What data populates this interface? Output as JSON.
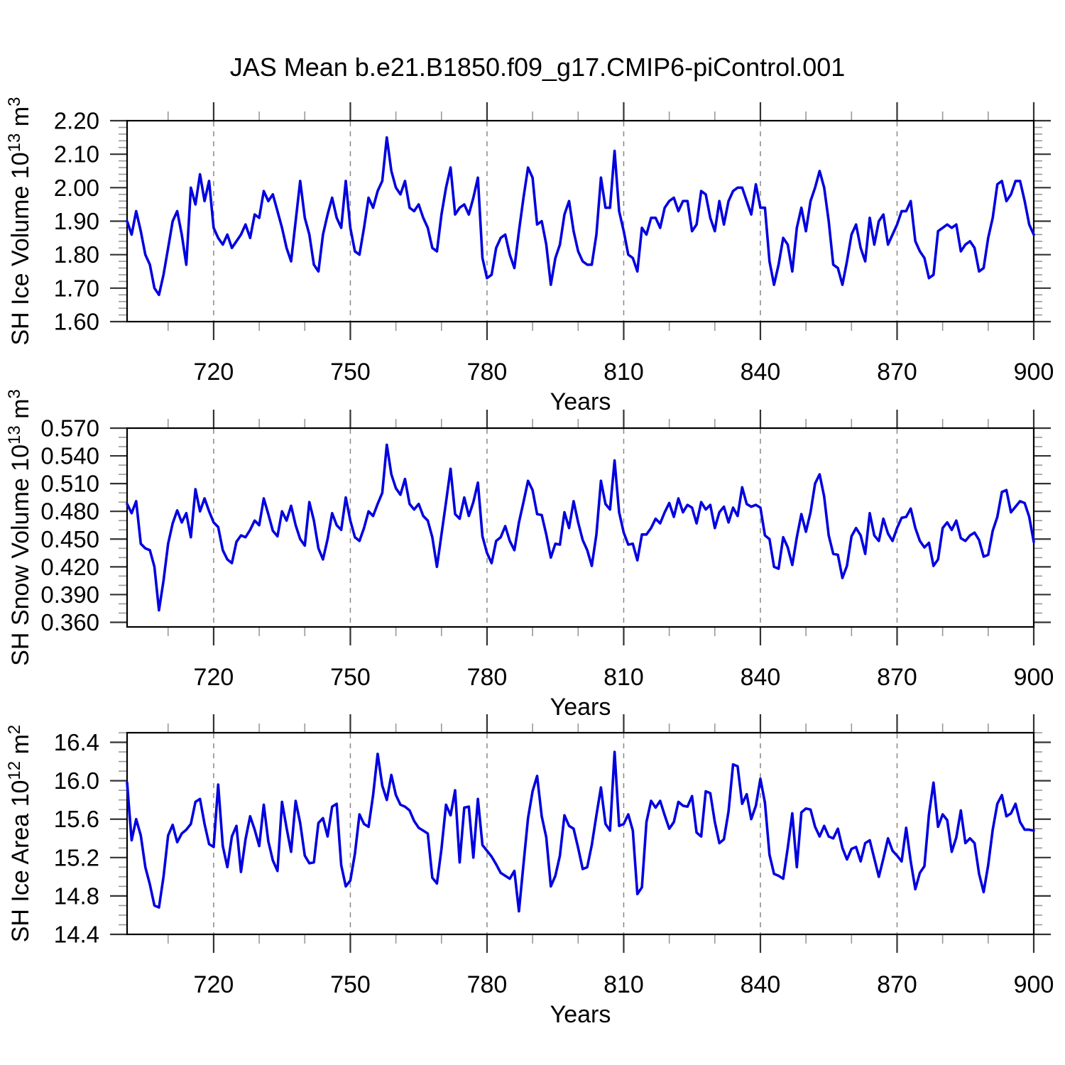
{
  "title": "JAS Mean b.e21.B1850.f09_g17.CMIP6-piControl.001",
  "colors": {
    "line": "#0000e0",
    "frame": "#000000",
    "grid": "#888888",
    "major_tick": "#333333",
    "minor_tick": "#999999",
    "text": "#000000"
  },
  "x_axis": {
    "label": "Years",
    "xlim": [
      701,
      900
    ],
    "major_ticks": [
      720,
      750,
      780,
      810,
      840,
      870,
      900
    ],
    "minor_step": 10
  },
  "chart_data": [
    {
      "id": "sh-ice-volume",
      "type": "line",
      "series_name": "SH Ice Volume 10^13 m^3",
      "xlabel": "Years",
      "ylabel_parts": [
        {
          "t": "SH Ice Volume 10"
        },
        {
          "s": "13"
        },
        {
          "t": " m"
        },
        {
          "s": "3"
        }
      ],
      "ylim": [
        1.6,
        2.2
      ],
      "y_major": [
        {
          "v": 2.2,
          "label": "2.20"
        },
        {
          "v": 2.1,
          "label": "2.10"
        },
        {
          "v": 2.0,
          "label": "2.00"
        },
        {
          "v": 1.9,
          "label": "1.90"
        },
        {
          "v": 1.8,
          "label": "1.80"
        },
        {
          "v": 1.7,
          "label": "1.70"
        },
        {
          "v": 1.6,
          "label": "1.60"
        }
      ],
      "y_minor_step": 0.02,
      "x_start": 701,
      "x_step": 1,
      "values": [
        1.9,
        1.86,
        1.93,
        1.87,
        1.8,
        1.77,
        1.7,
        1.68,
        1.74,
        1.82,
        1.9,
        1.93,
        1.86,
        1.77,
        2.0,
        1.95,
        2.04,
        1.96,
        2.02,
        1.88,
        1.85,
        1.83,
        1.86,
        1.82,
        1.84,
        1.86,
        1.89,
        1.85,
        1.92,
        1.91,
        1.99,
        1.96,
        1.98,
        1.93,
        1.88,
        1.82,
        1.78,
        1.9,
        2.02,
        1.91,
        1.86,
        1.77,
        1.75,
        1.86,
        1.92,
        1.97,
        1.91,
        1.88,
        2.02,
        1.88,
        1.81,
        1.8,
        1.88,
        1.97,
        1.94,
        1.99,
        2.02,
        2.15,
        2.05,
        2.0,
        1.98,
        2.02,
        1.94,
        1.93,
        1.95,
        1.91,
        1.88,
        1.82,
        1.81,
        1.92,
        2.0,
        2.06,
        1.92,
        1.94,
        1.95,
        1.92,
        1.97,
        2.03,
        1.79,
        1.73,
        1.74,
        1.82,
        1.85,
        1.86,
        1.8,
        1.76,
        1.87,
        1.97,
        2.06,
        2.03,
        1.89,
        1.9,
        1.83,
        1.71,
        1.79,
        1.83,
        1.92,
        1.96,
        1.87,
        1.81,
        1.78,
        1.77,
        1.77,
        1.86,
        2.03,
        1.94,
        1.94,
        2.11,
        1.93,
        1.87,
        1.8,
        1.79,
        1.75,
        1.88,
        1.86,
        1.91,
        1.91,
        1.88,
        1.94,
        1.96,
        1.97,
        1.93,
        1.96,
        1.96,
        1.87,
        1.89,
        1.99,
        1.98,
        1.91,
        1.87,
        1.96,
        1.89,
        1.96,
        1.99,
        2.0,
        2.0,
        1.96,
        1.92,
        2.01,
        1.94,
        1.94,
        1.78,
        1.71,
        1.77,
        1.85,
        1.83,
        1.75,
        1.88,
        1.94,
        1.87,
        1.96,
        2.0,
        2.05,
        2.0,
        1.9,
        1.77,
        1.76,
        1.71,
        1.78,
        1.86,
        1.89,
        1.82,
        1.78,
        1.91,
        1.83,
        1.9,
        1.92,
        1.83,
        1.86,
        1.89,
        1.93,
        1.93,
        1.96,
        1.84,
        1.81,
        1.79,
        1.73,
        1.74,
        1.87,
        1.88,
        1.89,
        1.88,
        1.89,
        1.81,
        1.83,
        1.84,
        1.82,
        1.75,
        1.76,
        1.85,
        1.91,
        2.01,
        2.02,
        1.96,
        1.98,
        2.02,
        2.02,
        1.96,
        1.89,
        1.86
      ]
    },
    {
      "id": "sh-snow-volume",
      "type": "line",
      "series_name": "SH Snow Volume 10^13 m^3",
      "xlabel": "Years",
      "ylabel_parts": [
        {
          "t": "SH Snow Volume 10"
        },
        {
          "s": "13"
        },
        {
          "t": " m"
        },
        {
          "s": "3"
        }
      ],
      "ylim": [
        0.355,
        0.57
      ],
      "y_major": [
        {
          "v": 0.57,
          "label": "0.570"
        },
        {
          "v": 0.54,
          "label": "0.540"
        },
        {
          "v": 0.51,
          "label": "0.510"
        },
        {
          "v": 0.48,
          "label": "0.480"
        },
        {
          "v": 0.45,
          "label": "0.450"
        },
        {
          "v": 0.42,
          "label": "0.420"
        },
        {
          "v": 0.39,
          "label": "0.390"
        },
        {
          "v": 0.36,
          "label": "0.360"
        }
      ],
      "y_minor_step": 0.01,
      "x_start": 701,
      "x_step": 1,
      "values": [
        0.488,
        0.478,
        0.491,
        0.445,
        0.44,
        0.438,
        0.42,
        0.373,
        0.405,
        0.445,
        0.467,
        0.481,
        0.468,
        0.478,
        0.452,
        0.504,
        0.48,
        0.494,
        0.48,
        0.468,
        0.463,
        0.438,
        0.428,
        0.424,
        0.447,
        0.454,
        0.452,
        0.46,
        0.47,
        0.465,
        0.494,
        0.477,
        0.459,
        0.453,
        0.48,
        0.47,
        0.486,
        0.465,
        0.45,
        0.443,
        0.49,
        0.47,
        0.44,
        0.428,
        0.45,
        0.478,
        0.465,
        0.46,
        0.495,
        0.47,
        0.452,
        0.448,
        0.462,
        0.48,
        0.475,
        0.488,
        0.5,
        0.552,
        0.52,
        0.505,
        0.498,
        0.515,
        0.488,
        0.482,
        0.488,
        0.475,
        0.47,
        0.452,
        0.42,
        0.455,
        0.49,
        0.526,
        0.477,
        0.472,
        0.495,
        0.475,
        0.49,
        0.511,
        0.453,
        0.435,
        0.424,
        0.448,
        0.452,
        0.464,
        0.448,
        0.438,
        0.468,
        0.49,
        0.513,
        0.503,
        0.477,
        0.476,
        0.455,
        0.43,
        0.445,
        0.444,
        0.479,
        0.462,
        0.491,
        0.468,
        0.449,
        0.438,
        0.421,
        0.455,
        0.513,
        0.488,
        0.482,
        0.535,
        0.479,
        0.457,
        0.444,
        0.445,
        0.427,
        0.455,
        0.455,
        0.462,
        0.472,
        0.467,
        0.479,
        0.489,
        0.474,
        0.494,
        0.479,
        0.487,
        0.484,
        0.467,
        0.49,
        0.482,
        0.487,
        0.462,
        0.479,
        0.485,
        0.468,
        0.484,
        0.475,
        0.506,
        0.488,
        0.485,
        0.487,
        0.484,
        0.454,
        0.45,
        0.42,
        0.418,
        0.452,
        0.441,
        0.422,
        0.452,
        0.477,
        0.458,
        0.479,
        0.51,
        0.52,
        0.496,
        0.454,
        0.434,
        0.433,
        0.408,
        0.421,
        0.453,
        0.462,
        0.454,
        0.434,
        0.478,
        0.454,
        0.448,
        0.472,
        0.456,
        0.448,
        0.462,
        0.473,
        0.474,
        0.483,
        0.462,
        0.448,
        0.441,
        0.446,
        0.421,
        0.428,
        0.462,
        0.468,
        0.46,
        0.47,
        0.451,
        0.448,
        0.454,
        0.457,
        0.449,
        0.431,
        0.433,
        0.459,
        0.474,
        0.501,
        0.503,
        0.479,
        0.485,
        0.491,
        0.489,
        0.474,
        0.447
      ]
    },
    {
      "id": "sh-ice-area",
      "type": "line",
      "series_name": "SH Ice Area 10^12 m^2",
      "xlabel": "Years",
      "ylabel_parts": [
        {
          "t": "SH Ice Area 10"
        },
        {
          "s": "12"
        },
        {
          "t": " m"
        },
        {
          "s": "2"
        }
      ],
      "ylim": [
        14.4,
        16.5
      ],
      "y_major": [
        {
          "v": 16.4,
          "label": "16.4"
        },
        {
          "v": 16.0,
          "label": "16.0"
        },
        {
          "v": 15.6,
          "label": "15.6"
        },
        {
          "v": 15.2,
          "label": "15.2"
        },
        {
          "v": 14.8,
          "label": "14.8"
        },
        {
          "v": 14.4,
          "label": "14.4"
        }
      ],
      "y_minor_step": 0.1,
      "x_start": 701,
      "x_step": 1,
      "values": [
        15.98,
        15.38,
        15.6,
        15.43,
        15.1,
        14.92,
        14.7,
        14.68,
        15.0,
        15.43,
        15.54,
        15.36,
        15.45,
        15.49,
        15.55,
        15.78,
        15.81,
        15.55,
        15.34,
        15.31,
        15.96,
        15.32,
        15.1,
        15.42,
        15.53,
        15.05,
        15.39,
        15.63,
        15.49,
        15.32,
        15.75,
        15.37,
        15.17,
        15.06,
        15.78,
        15.51,
        15.26,
        15.79,
        15.56,
        15.22,
        15.14,
        15.15,
        15.56,
        15.61,
        15.42,
        15.73,
        15.76,
        15.12,
        14.9,
        14.96,
        15.24,
        15.65,
        15.55,
        15.52,
        15.85,
        16.28,
        15.95,
        15.8,
        16.06,
        15.85,
        15.75,
        15.73,
        15.69,
        15.58,
        15.51,
        15.48,
        15.45,
        14.99,
        14.93,
        15.29,
        15.75,
        15.64,
        15.9,
        15.15,
        15.72,
        15.73,
        15.2,
        15.81,
        15.33,
        15.27,
        15.21,
        15.13,
        15.04,
        15.01,
        14.98,
        15.06,
        14.64,
        15.13,
        15.61,
        15.89,
        16.05,
        15.63,
        15.41,
        14.9,
        15.01,
        15.22,
        15.64,
        15.53,
        15.5,
        15.3,
        15.08,
        15.1,
        15.33,
        15.64,
        15.93,
        15.55,
        15.48,
        16.3,
        15.53,
        15.55,
        15.65,
        15.48,
        14.82,
        14.89,
        15.57,
        15.79,
        15.72,
        15.79,
        15.64,
        15.5,
        15.57,
        15.78,
        15.74,
        15.73,
        15.84,
        15.46,
        15.42,
        15.89,
        15.87,
        15.57,
        15.35,
        15.39,
        15.68,
        16.17,
        16.15,
        15.76,
        15.86,
        15.6,
        15.74,
        16.02,
        15.77,
        15.23,
        15.03,
        15.01,
        14.98,
        15.3,
        15.66,
        15.1,
        15.67,
        15.71,
        15.7,
        15.52,
        15.42,
        15.53,
        15.42,
        15.4,
        15.5,
        15.3,
        15.18,
        15.29,
        15.31,
        15.16,
        15.35,
        15.38,
        15.19,
        15.0,
        15.19,
        15.4,
        15.27,
        15.22,
        15.16,
        15.51,
        15.16,
        14.87,
        15.04,
        15.11,
        15.65,
        15.98,
        15.52,
        15.65,
        15.59,
        15.26,
        15.41,
        15.69,
        15.35,
        15.4,
        15.35,
        15.03,
        14.84,
        15.12,
        15.49,
        15.76,
        15.85,
        15.63,
        15.66,
        15.76,
        15.57,
        15.49,
        15.49,
        15.48
      ]
    }
  ]
}
